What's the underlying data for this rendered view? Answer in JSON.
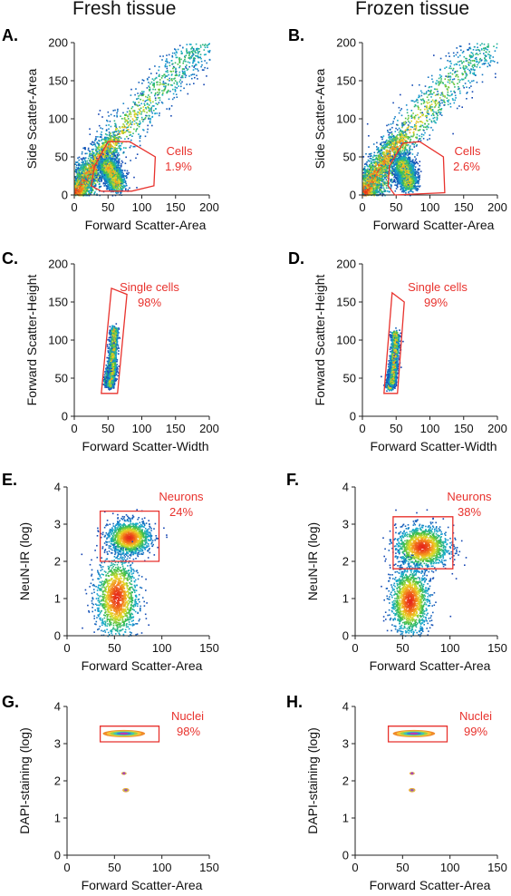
{
  "columns": [
    "Fresh tissue",
    "Frozen tissue"
  ],
  "colors": {
    "gate": "#e8322d",
    "axis": "#222222",
    "text": "#111111"
  },
  "chart_data": [
    {
      "panel": "A.",
      "type": "scatter",
      "column": "Fresh tissue",
      "xlabel": "Forward Scatter-Area",
      "ylabel": "Side Scatter-Area",
      "xlim": [
        0,
        200
      ],
      "ylim": [
        0,
        200
      ],
      "xticks": [
        0,
        50,
        100,
        150,
        200
      ],
      "yticks": [
        0,
        50,
        100,
        150,
        200
      ],
      "plot": "density",
      "populations": [
        {
          "points": [
            [
              5,
              8
            ],
            [
              20,
              25
            ],
            [
              40,
              50
            ],
            [
              70,
              85
            ],
            [
              100,
              115
            ],
            [
              130,
              145
            ],
            [
              160,
              175
            ],
            [
              195,
              200
            ]
          ],
          "spread": 13
        },
        {
          "points": [
            [
              2,
              3
            ],
            [
              8,
              12
            ],
            [
              18,
              26
            ],
            [
              30,
              42
            ],
            [
              45,
              60
            ],
            [
              60,
              72
            ]
          ],
          "spread": 8
        },
        {
          "points": [
            [
              48,
              38
            ],
            [
              55,
              30
            ],
            [
              60,
              20
            ],
            [
              63,
              14
            ]
          ],
          "spread": 7
        }
      ],
      "gate": {
        "label": "Cells",
        "percent": "1.9%",
        "polygon": [
          [
            25,
            12
          ],
          [
            40,
            5
          ],
          [
            85,
            5
          ],
          [
            118,
            12
          ],
          [
            120,
            50
          ],
          [
            82,
            70
          ],
          [
            50,
            70
          ],
          [
            30,
            38
          ]
        ]
      }
    },
    {
      "panel": "B.",
      "type": "scatter",
      "column": "Frozen tissue",
      "xlabel": "Forward Scatter-Area",
      "ylabel": "Side Scatter-Area",
      "xlim": [
        0,
        200
      ],
      "ylim": [
        0,
        200
      ],
      "xticks": [
        0,
        50,
        100,
        150,
        200
      ],
      "yticks": [
        0,
        50,
        100,
        150,
        200
      ],
      "plot": "density",
      "populations": [
        {
          "points": [
            [
              5,
              8
            ],
            [
              20,
              25
            ],
            [
              40,
              52
            ],
            [
              70,
              88
            ],
            [
              100,
              118
            ],
            [
              130,
              150
            ],
            [
              165,
              180
            ],
            [
              195,
              200
            ]
          ],
          "spread": 14
        },
        {
          "points": [
            [
              2,
              3
            ],
            [
              8,
              12
            ],
            [
              18,
              28
            ],
            [
              30,
              45
            ],
            [
              45,
              62
            ],
            [
              60,
              75
            ]
          ],
          "spread": 9
        },
        {
          "points": [
            [
              58,
              40
            ],
            [
              64,
              32
            ],
            [
              66,
              22
            ],
            [
              68,
              15
            ]
          ],
          "spread": 7
        }
      ],
      "gate": {
        "label": "Cells",
        "percent": "2.6%",
        "polygon": [
          [
            38,
            12
          ],
          [
            48,
            0
          ],
          [
            122,
            3
          ],
          [
            120,
            50
          ],
          [
            85,
            70
          ],
          [
            60,
            68
          ],
          [
            40,
            38
          ]
        ]
      }
    },
    {
      "panel": "C.",
      "type": "scatter",
      "column": "Fresh tissue",
      "xlabel": "Forward Scatter-Width",
      "ylabel": "Forward Scatter-Height",
      "xlim": [
        0,
        200
      ],
      "ylim": [
        0,
        200
      ],
      "xticks": [
        0,
        50,
        100,
        150,
        200
      ],
      "yticks": [
        0,
        50,
        100,
        150,
        200
      ],
      "plot": "density",
      "populations": [
        {
          "points": [
            [
              48,
              45
            ],
            [
              52,
              60
            ],
            [
              55,
              75
            ],
            [
              57,
              90
            ],
            [
              58,
              105
            ],
            [
              58,
              115
            ]
          ],
          "spread": 3
        },
        {
          "points": [
            [
              52,
              42
            ],
            [
              55,
              55
            ],
            [
              57,
              70
            ]
          ],
          "spread": 2.5
        }
      ],
      "gate": {
        "label": "Single cells",
        "percent": "98%",
        "polygon": [
          [
            40,
            30
          ],
          [
            64,
            30
          ],
          [
            78,
            160
          ],
          [
            55,
            168
          ]
        ]
      }
    },
    {
      "panel": "D.",
      "type": "scatter",
      "column": "Frozen tissue",
      "xlabel": "Forward Scatter-Width",
      "ylabel": "Forward Scatter-Height",
      "xlim": [
        0,
        200
      ],
      "ylim": [
        0,
        200
      ],
      "xticks": [
        0,
        50,
        100,
        150,
        200
      ],
      "yticks": [
        0,
        50,
        100,
        150,
        200
      ],
      "plot": "density",
      "populations": [
        {
          "points": [
            [
              40,
              40
            ],
            [
              42,
              55
            ],
            [
              45,
              70
            ],
            [
              47,
              85
            ],
            [
              48,
              100
            ],
            [
              48,
              110
            ]
          ],
          "spread": 3
        },
        {
          "points": [
            [
              43,
              45
            ],
            [
              45,
              58
            ],
            [
              46,
              72
            ]
          ],
          "spread": 2.5
        }
      ],
      "gate": {
        "label": "Single cells",
        "percent": "99%",
        "polygon": [
          [
            32,
            30
          ],
          [
            52,
            30
          ],
          [
            62,
            150
          ],
          [
            44,
            162
          ]
        ]
      }
    },
    {
      "panel": "E.",
      "type": "scatter",
      "column": "Fresh tissue",
      "xlabel": "Forward Scatter-Area",
      "ylabel": "NeuN-IR (log)",
      "xlim": [
        0,
        150
      ],
      "ylim": [
        0,
        4
      ],
      "xticks": [
        0,
        50,
        100,
        150
      ],
      "yticks": [
        0,
        1,
        2,
        3,
        4
      ],
      "plot": "density",
      "populations": [
        {
          "points": [
            [
              65,
              2.65
            ]
          ],
          "spread": 11,
          "yspread": 0.22
        },
        {
          "points": [
            [
              52,
              1.05
            ]
          ],
          "spread": 11,
          "yspread": 0.55
        }
      ],
      "gate": {
        "label": "Neurons",
        "percent": "24%",
        "polygon": [
          [
            35,
            2.0
          ],
          [
            97,
            2.0
          ],
          [
            97,
            3.35
          ],
          [
            35,
            3.35
          ]
        ]
      }
    },
    {
      "panel": "F.",
      "type": "scatter",
      "column": "Frozen tissue",
      "xlabel": "Forward Scatter-Area",
      "ylabel": "NeuN-IR (log)",
      "xlim": [
        0,
        150
      ],
      "ylim": [
        0,
        4
      ],
      "xticks": [
        0,
        50,
        100,
        150
      ],
      "yticks": [
        0,
        1,
        2,
        3,
        4
      ],
      "plot": "density",
      "populations": [
        {
          "points": [
            [
              70,
              2.4
            ]
          ],
          "spread": 14,
          "yspread": 0.28
        },
        {
          "points": [
            [
              57,
              0.95
            ]
          ],
          "spread": 10,
          "yspread": 0.45
        }
      ],
      "gate": {
        "label": "Neurons",
        "percent": "38%",
        "polygon": [
          [
            40,
            1.8
          ],
          [
            103,
            1.8
          ],
          [
            103,
            3.2
          ],
          [
            40,
            3.2
          ]
        ]
      }
    },
    {
      "panel": "G.",
      "type": "scatter",
      "column": "Fresh tissue",
      "xlabel": "Forward Scatter-Area",
      "ylabel": "DAPI-staining (log)",
      "xlim": [
        0,
        150
      ],
      "ylim": [
        0,
        4
      ],
      "xticks": [
        0,
        50,
        100,
        150
      ],
      "yticks": [
        0,
        1,
        2,
        3,
        4
      ],
      "plot": "contour",
      "populations": [
        {
          "points": [
            [
              60,
              3.27
            ]
          ],
          "spread": 16,
          "yspread": 0.07
        },
        {
          "points": [
            [
              60,
              2.2
            ]
          ],
          "spread": 2,
          "yspread": 0.03
        },
        {
          "points": [
            [
              62,
              1.75
            ]
          ],
          "spread": 2.5,
          "yspread": 0.04
        }
      ],
      "gate": {
        "label": "Nuclei",
        "percent": "98%",
        "polygon": [
          [
            35,
            3.05
          ],
          [
            97,
            3.05
          ],
          [
            97,
            3.47
          ],
          [
            35,
            3.47
          ]
        ]
      }
    },
    {
      "panel": "H.",
      "type": "scatter",
      "column": "Frozen tissue",
      "xlabel": "Forward Scatter-Area",
      "ylabel": "DAPI-staining (log)",
      "xlim": [
        0,
        150
      ],
      "ylim": [
        0,
        4
      ],
      "xticks": [
        0,
        50,
        100,
        150
      ],
      "yticks": [
        0,
        1,
        2,
        3,
        4
      ],
      "plot": "contour",
      "populations": [
        {
          "points": [
            [
              62,
              3.27
            ]
          ],
          "spread": 16,
          "yspread": 0.07
        },
        {
          "points": [
            [
              60,
              2.2
            ]
          ],
          "spread": 2,
          "yspread": 0.03
        },
        {
          "points": [
            [
              60,
              1.75
            ]
          ],
          "spread": 2.5,
          "yspread": 0.04
        }
      ],
      "gate": {
        "label": "Nuclei",
        "percent": "99%",
        "polygon": [
          [
            35,
            3.05
          ],
          [
            97,
            3.05
          ],
          [
            97,
            3.47
          ],
          [
            35,
            3.47
          ]
        ]
      }
    }
  ]
}
